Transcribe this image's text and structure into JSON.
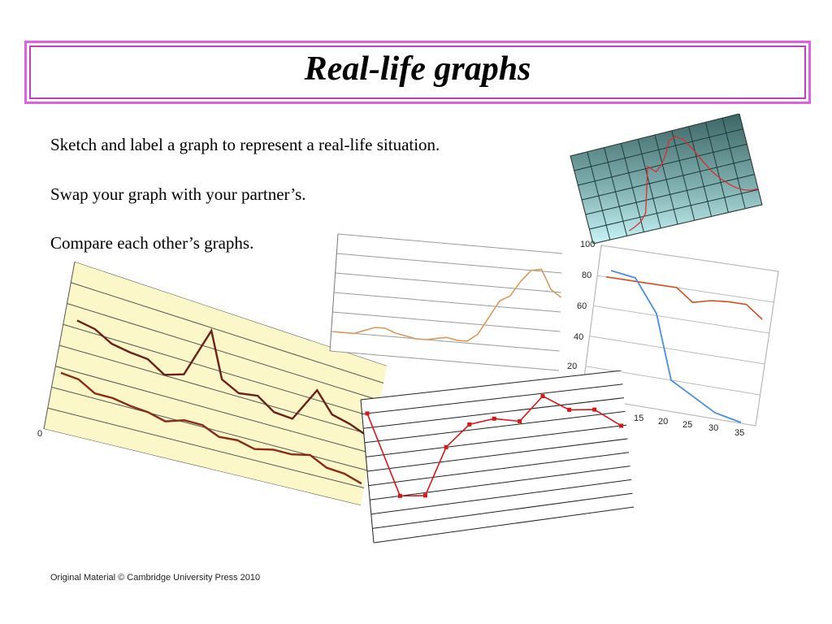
{
  "slide": {
    "title": "Real-life graphs",
    "instructions": [
      "Sketch and label a graph to represent a real-life situation.",
      "Swap your graph with your partner’s.",
      "Compare each other’s graphs."
    ],
    "footer": "Original Material © Cambridge University Press 2010"
  },
  "colors": {
    "title_border": "#e060e0",
    "teal_grid_bg": "#3f6f6f",
    "teal_line": "#d83030",
    "yellow_bg": "#fbf7c8",
    "dark_red_line": "#6a2018",
    "tan_line": "#d89a5c",
    "orange_line": "#d84b1a",
    "blue_line": "#4a8fe0",
    "red_line": "#d81818"
  },
  "chart_data": [
    {
      "type": "line",
      "series": [
        {
          "values": [
            5,
            8,
            12,
            20,
            45,
            70,
            62,
            68,
            78,
            92,
            95,
            90,
            78,
            62,
            48,
            38,
            30,
            24,
            20,
            18,
            18
          ]
        }
      ]
    },
    {
      "type": "line",
      "series": [
        {
          "values": [
            70,
            68,
            62,
            60,
            59,
            52,
            56,
            90,
            60,
            54,
            56,
            48,
            47,
            72,
            58,
            55,
            50
          ]
        },
        {
          "values": [
            35,
            34,
            28,
            28,
            26,
            25,
            22,
            26,
            26,
            21,
            22,
            19,
            22,
            22,
            25,
            19,
            18,
            14
          ]
        }
      ]
    },
    {
      "type": "line",
      "series": [
        {
          "values": [
            20,
            20,
            20,
            24,
            28,
            28,
            24,
            22,
            20,
            20,
            22,
            24,
            22,
            22,
            30,
            48,
            66,
            72,
            88,
            100,
            102,
            82,
            75
          ]
        }
      ]
    },
    {
      "type": "line",
      "x_ticks": [
        "15",
        "20",
        "25",
        "30",
        "35"
      ],
      "y_ticks": [
        "100",
        "80",
        "60",
        "40",
        "20"
      ],
      "series": [
        {
          "values": [
            80,
            80,
            80,
            80,
            80,
            72,
            75,
            76,
            76,
            68
          ]
        },
        {
          "values": [
            80,
            75,
            55,
            0,
            0,
            0,
            0,
            0,
            0
          ]
        }
      ]
    },
    {
      "type": "line",
      "series": [
        {
          "values": [
            90,
            30,
            28,
            60,
            74,
            76,
            72,
            88,
            76,
            74,
            60
          ]
        }
      ]
    }
  ]
}
